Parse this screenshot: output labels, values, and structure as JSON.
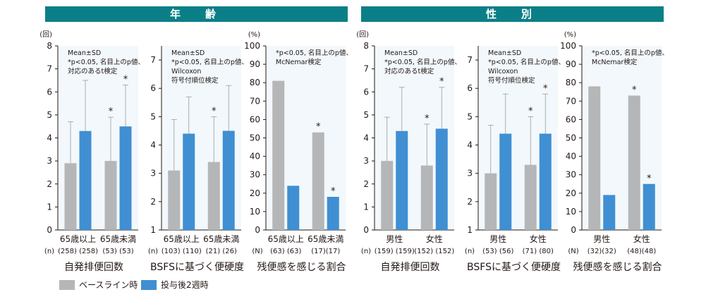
{
  "sections": [
    {
      "title": "年　齢"
    },
    {
      "title": "性　別"
    }
  ],
  "colors": {
    "baseline": "#b5b6b7",
    "week2": "#3f8fd2",
    "header": "#0b7f87"
  },
  "legend": {
    "baseline": "ベースライン時",
    "week2": "投与後2週時"
  },
  "chart_data": [
    {
      "type": "bar",
      "section": "年齢",
      "xlabel": "自発排便回数",
      "ylabel": "(回)",
      "ylim": [
        0,
        8
      ],
      "yticks": [
        "0",
        "1",
        "2",
        "3",
        "4",
        "5",
        "6",
        "7",
        "8"
      ],
      "note": [
        "Mean±SD",
        "*p<0.05, 名目上のp値、",
        "対応のあるt検定"
      ],
      "categories": [
        "65歳以上",
        "65歳未満"
      ],
      "n_prefix": "(n)",
      "n": [
        "(258) (258)",
        "(53) (53)"
      ],
      "series": [
        {
          "name": "ベースライン時",
          "values": [
            2.9,
            3.0
          ]
        },
        {
          "name": "投与後2週時",
          "values": [
            4.3,
            4.5
          ]
        }
      ],
      "errors": [
        [
          1.8,
          2.2
        ],
        [
          1.9,
          1.8
        ]
      ],
      "sig": [
        false,
        false,
        true,
        true
      ]
    },
    {
      "type": "bar",
      "section": "年齢",
      "xlabel": "BSFSに基づく便硬度",
      "ylabel": "",
      "ylim": [
        1,
        7.5
      ],
      "yticks": [
        "1",
        "2",
        "3",
        "4",
        "5",
        "6",
        "7"
      ],
      "note": [
        "Mean±SD",
        "*p<0.05, 名目上のp値、",
        "Wilcoxon",
        "符号付順位検定"
      ],
      "categories": [
        "65歳以上",
        "65歳未満"
      ],
      "n_prefix": "(n)",
      "n": [
        "(103) (110)",
        "(21) (26)"
      ],
      "series": [
        {
          "name": "ベースライン時",
          "values": [
            3.1,
            3.4
          ]
        },
        {
          "name": "投与後2週時",
          "values": [
            4.4,
            4.5
          ]
        }
      ],
      "errors": [
        [
          1.8,
          1.3
        ],
        [
          1.6,
          1.6
        ]
      ],
      "sig": [
        false,
        false,
        true,
        false
      ]
    },
    {
      "type": "bar",
      "section": "年齢",
      "xlabel": "残便感を感じる割合",
      "ylabel": "(%)",
      "ylim": [
        0,
        100
      ],
      "yticks": [
        "0",
        "10",
        "20",
        "30",
        "40",
        "50",
        "60",
        "70",
        "80",
        "90",
        "100"
      ],
      "note": [
        "*p<0.05, 名目上のp値、",
        "McNemar検定"
      ],
      "categories": [
        "65歳以上",
        "65歳未満"
      ],
      "n_prefix": "(N)",
      "n": [
        "(63) (63)",
        "(17)(17)"
      ],
      "series": [
        {
          "name": "ベースライン時",
          "values": [
            81,
            53
          ]
        },
        {
          "name": "投与後2週時",
          "values": [
            24,
            18
          ]
        }
      ],
      "errors": null,
      "sig": [
        false,
        false,
        true,
        true
      ]
    },
    {
      "type": "bar",
      "section": "性別",
      "xlabel": "自発排便回数",
      "ylabel": "(回)",
      "ylim": [
        0,
        8
      ],
      "yticks": [
        "0",
        "1",
        "2",
        "3",
        "4",
        "5",
        "6",
        "7",
        "8"
      ],
      "note": [
        "Mean±SD",
        "*p<0.05, 名目上のp値、",
        "対応のあるt検定"
      ],
      "categories": [
        "男性",
        "女性"
      ],
      "n_prefix": "(n)",
      "n": [
        "(159) (159)",
        "(152) (152)"
      ],
      "series": [
        {
          "name": "ベースライン時",
          "values": [
            3.0,
            2.8
          ]
        },
        {
          "name": "投与後2週時",
          "values": [
            4.3,
            4.4
          ]
        }
      ],
      "errors": [
        [
          1.9,
          1.9
        ],
        [
          1.8,
          1.8
        ]
      ],
      "sig": [
        false,
        false,
        true,
        true
      ]
    },
    {
      "type": "bar",
      "section": "性別",
      "xlabel": "BSFSに基づく便硬度",
      "ylabel": "",
      "ylim": [
        1,
        7.5
      ],
      "yticks": [
        "1",
        "2",
        "3",
        "4",
        "5",
        "6",
        "7"
      ],
      "note": [
        "Mean±SD",
        "*p<0.05, 名目上のp値、",
        "Wilcoxon",
        "符号付順位検定"
      ],
      "categories": [
        "男性",
        "女性"
      ],
      "n_prefix": "(n)",
      "n": [
        "(53) (56)",
        "(71) (80)"
      ],
      "series": [
        {
          "name": "ベースライン時",
          "values": [
            3.0,
            3.3
          ]
        },
        {
          "name": "投与後2週時",
          "values": [
            4.4,
            4.4
          ]
        }
      ],
      "errors": [
        [
          1.7,
          1.4
        ],
        [
          1.7,
          1.4
        ]
      ],
      "sig": [
        false,
        false,
        true,
        true
      ]
    },
    {
      "type": "bar",
      "section": "性別",
      "xlabel": "残便感を感じる割合",
      "ylabel": "(%)",
      "ylim": [
        0,
        100
      ],
      "yticks": [
        "0",
        "10",
        "20",
        "30",
        "40",
        "50",
        "60",
        "70",
        "80",
        "90",
        "100"
      ],
      "note": [
        "*p<0.05, 名目上のp値、",
        "McNemar検定"
      ],
      "categories": [
        "男性",
        "女性"
      ],
      "n_prefix": "(N)",
      "n": [
        "(32)(32)",
        "(48)(48)"
      ],
      "series": [
        {
          "name": "ベースライン時",
          "values": [
            78,
            73
          ]
        },
        {
          "name": "投与後2週時",
          "values": [
            19,
            25
          ]
        }
      ],
      "errors": null,
      "sig": [
        false,
        false,
        true,
        true
      ]
    }
  ]
}
